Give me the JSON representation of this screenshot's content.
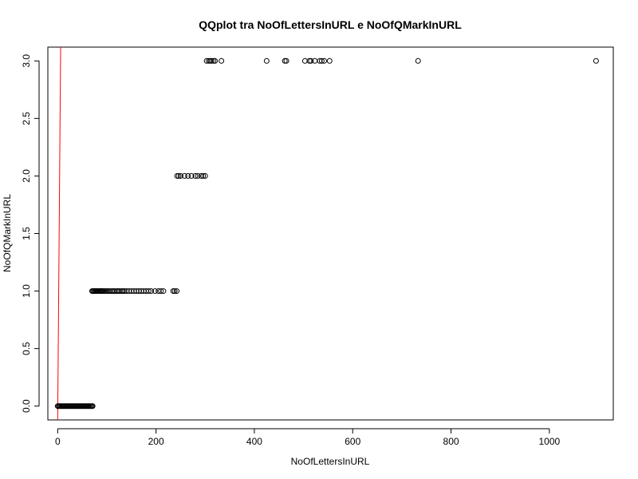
{
  "chart_data": {
    "type": "scatter",
    "title": "QQplot tra NoOfLettersInURL e NoOfQMarkInURL",
    "xlabel": "NoOfLettersInURL",
    "ylabel": "NoOfQMarkInURL",
    "xlim": [
      -20,
      1130
    ],
    "ylim": [
      -0.12,
      3.12
    ],
    "x_ticks": [
      0,
      200,
      400,
      600,
      800,
      1000
    ],
    "y_ticks": [
      0.0,
      0.5,
      1.0,
      1.5,
      2.0,
      2.5,
      3.0
    ],
    "x_tick_labels": [
      "0",
      "200",
      "400",
      "600",
      "800",
      "1000"
    ],
    "y_tick_labels": [
      "0.0",
      "0.5",
      "1.0",
      "1.5",
      "2.0",
      "2.5",
      "3.0"
    ],
    "grid": false,
    "marker": "open-circle",
    "reference_line": {
      "color": "#ff0000",
      "from": [
        0,
        -0.12
      ],
      "to": [
        6,
        3.12
      ]
    },
    "series": [
      {
        "x": [
          0,
          2,
          4,
          6,
          8,
          10,
          12,
          14,
          16,
          18,
          20,
          22,
          24,
          26,
          28,
          30,
          32,
          34,
          36,
          38,
          40,
          42,
          44,
          46,
          48,
          50,
          52,
          54,
          56,
          58,
          60,
          62,
          64,
          66,
          68,
          70,
          71
        ],
        "y": [
          0,
          0,
          0,
          0,
          0,
          0,
          0,
          0,
          0,
          0,
          0,
          0,
          0,
          0,
          0,
          0,
          0,
          0,
          0,
          0,
          0,
          0,
          0,
          0,
          0,
          0,
          0,
          0,
          0,
          0,
          0,
          0,
          0,
          0,
          0,
          0,
          0
        ]
      },
      {
        "x": [
          70,
          72,
          74,
          76,
          78,
          80,
          82,
          84,
          86,
          88,
          90,
          92,
          95,
          98,
          100,
          103,
          106,
          110,
          113,
          116,
          120,
          123,
          126,
          130,
          133,
          136,
          140,
          145,
          150,
          155,
          160,
          165,
          170,
          175,
          180,
          185,
          190,
          198,
          205,
          210,
          215,
          235,
          238,
          242
        ],
        "y": [
          1,
          1,
          1,
          1,
          1,
          1,
          1,
          1,
          1,
          1,
          1,
          1,
          1,
          1,
          1,
          1,
          1,
          1,
          1,
          1,
          1,
          1,
          1,
          1,
          1,
          1,
          1,
          1,
          1,
          1,
          1,
          1,
          1,
          1,
          1,
          1,
          1,
          1,
          1,
          1,
          1,
          1,
          1,
          1
        ]
      },
      {
        "x": [
          243,
          246,
          250,
          258,
          265,
          272,
          280,
          285,
          292,
          296,
          300
        ],
        "y": [
          2,
          2,
          2,
          2,
          2,
          2,
          2,
          2,
          2,
          2,
          2
        ]
      },
      {
        "x": [
          303,
          307,
          310,
          313,
          317,
          320,
          333,
          425,
          462,
          465,
          503,
          512,
          515,
          523,
          533,
          537,
          542,
          553,
          733,
          1095
        ],
        "y": [
          3,
          3,
          3,
          3,
          3,
          3,
          3,
          3,
          3,
          3,
          3,
          3,
          3,
          3,
          3,
          3,
          3,
          3,
          3,
          3
        ]
      }
    ]
  }
}
